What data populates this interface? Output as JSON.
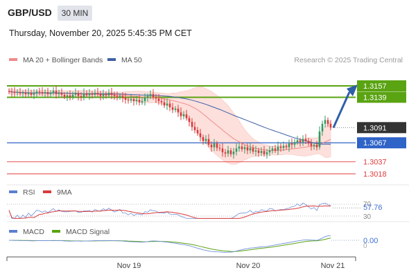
{
  "header": {
    "symbol": "GBP/USD",
    "timeframe": "30 MIN",
    "datetime": "Thursday, November 20, 2025 5:45:35 PM CET"
  },
  "legend": {
    "ma20_label": "MA 20 + Bollinger Bands",
    "ma50_label": "MA 50",
    "credit": "Research © 2025 Trading Central"
  },
  "colors": {
    "green_level": "#5aa312",
    "blue_level": "#2e63c7",
    "red_level": "#e23b3b",
    "bull": "#2f9a62",
    "bear": "#d93a3a",
    "ma20": "#f08a8a",
    "ma50": "#3f5fa8",
    "bollinger_fill": "#fde0dc",
    "arrow": "#2e5fa8",
    "current_tag": "#333333"
  },
  "chart_data": [
    {
      "type": "candlestick",
      "title": "GBP/USD 30 MIN",
      "x_labels": [
        "Nov 19",
        "Nov 20",
        "Nov 21"
      ],
      "ylim": [
        1.301,
        1.3165
      ],
      "current_price": 1.3091,
      "levels": [
        {
          "label": "1.3157",
          "value": 1.3157,
          "kind": "resistance"
        },
        {
          "label": "1.3139",
          "value": 1.3139,
          "kind": "resistance"
        },
        {
          "label": "1.3091",
          "value": 1.3091,
          "kind": "current"
        },
        {
          "label": "1.3067",
          "value": 1.3067,
          "kind": "pivot"
        },
        {
          "label": "1.3037",
          "value": 1.3037,
          "kind": "support"
        },
        {
          "label": "1.3018",
          "value": 1.3018,
          "kind": "support"
        }
      ],
      "forecast_target": 1.3157,
      "overlays": [
        "MA 20 + Bollinger Bands",
        "MA 50"
      ],
      "candle_closes": [
        1.3148,
        1.3147,
        1.3146,
        1.3147,
        1.3145,
        1.3146,
        1.3144,
        1.3146,
        1.3143,
        1.3145,
        1.3148,
        1.3147,
        1.3145,
        1.3147,
        1.3144,
        1.3146,
        1.3149,
        1.3144,
        1.3146,
        1.3143,
        1.314,
        1.3142,
        1.314,
        1.3143,
        1.3146,
        1.3141,
        1.3139,
        1.3145,
        1.3142,
        1.3145,
        1.3143,
        1.3146,
        1.3144,
        1.3141,
        1.3144,
        1.3142,
        1.3146,
        1.3143,
        1.3141,
        1.3139,
        1.3141,
        1.3138,
        1.3135,
        1.3134,
        1.3136,
        1.3133,
        1.3135,
        1.3131,
        1.3133,
        1.3138,
        1.3141,
        1.3144,
        1.3139,
        1.3137,
        1.3133,
        1.3131,
        1.3126,
        1.3129,
        1.3123,
        1.3119,
        1.3121,
        1.3115,
        1.3109,
        1.3112,
        1.3106,
        1.31,
        1.3092,
        1.3087,
        1.3082,
        1.3076,
        1.307,
        1.3073,
        1.3064,
        1.306,
        1.3066,
        1.3059,
        1.3058,
        1.3052,
        1.305,
        1.3055,
        1.3049,
        1.3053,
        1.3058,
        1.3061,
        1.3057,
        1.306,
        1.3055,
        1.3059,
        1.3053,
        1.3055,
        1.3051,
        1.3054,
        1.3049,
        1.3052,
        1.3055,
        1.3058,
        1.3055,
        1.3061,
        1.3059,
        1.3062,
        1.306,
        1.3066,
        1.3064,
        1.3068,
        1.3071,
        1.3068,
        1.3073,
        1.307,
        1.3066,
        1.3062,
        1.3064,
        1.306,
        1.3085,
        1.3097,
        1.3103,
        1.3097,
        1.3091
      ]
    },
    {
      "type": "line",
      "title": "RSI",
      "series": [
        {
          "name": "RSI"
        },
        {
          "name": "9MA"
        }
      ],
      "y_ticks": [
        30,
        70
      ],
      "current_value": 57.76,
      "current_label": "57.76",
      "tick_labels": [
        "70",
        "30"
      ]
    },
    {
      "type": "line",
      "title": "MACD",
      "series": [
        {
          "name": "MACD"
        },
        {
          "name": "MACD Signal"
        }
      ],
      "y_ticks": [
        0
      ],
      "current_value": 0.0,
      "current_label": "0.00",
      "tick_labels": [
        "0"
      ]
    }
  ]
}
